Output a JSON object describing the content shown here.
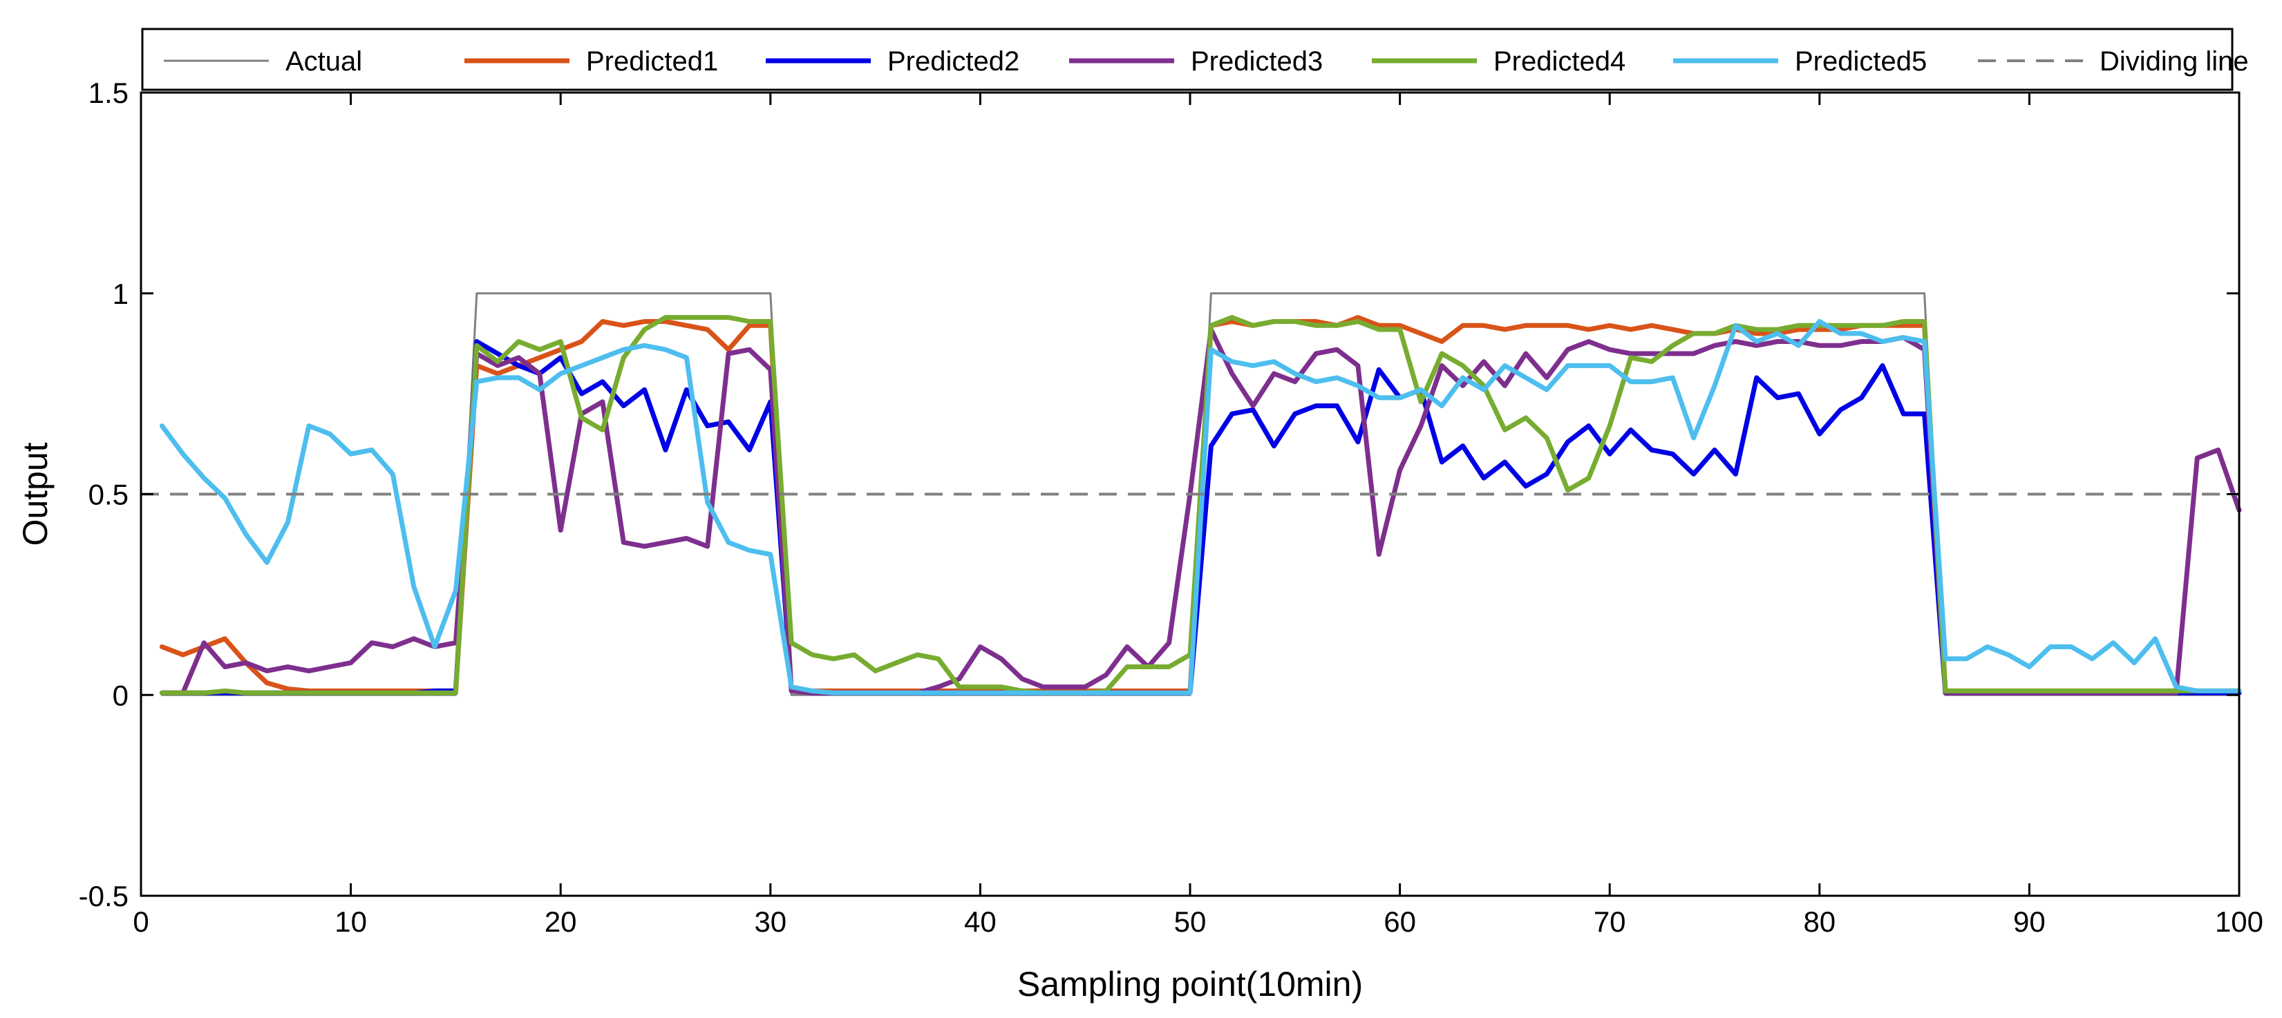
{
  "chart_data": {
    "type": "line",
    "title": "",
    "xlabel": "Sampling point(10min)",
    "ylabel": "Output",
    "xlim": [
      0,
      100
    ],
    "ylim": [
      -0.5,
      1.5
    ],
    "xticks": [
      "0",
      "10",
      "20",
      "30",
      "40",
      "50",
      "60",
      "70",
      "80",
      "90",
      "100"
    ],
    "yticks": [
      "-0.5",
      "0",
      "0.5",
      "1",
      "1.5"
    ],
    "xtick_values": [
      0,
      10,
      20,
      30,
      40,
      50,
      60,
      70,
      80,
      90,
      100
    ],
    "ytick_values": [
      -0.5,
      0,
      0.5,
      1,
      1.5
    ],
    "grid": false,
    "legend_placement": "top",
    "x": [
      1,
      2,
      3,
      4,
      5,
      6,
      7,
      8,
      9,
      10,
      11,
      12,
      13,
      14,
      15,
      16,
      17,
      18,
      19,
      20,
      21,
      22,
      23,
      24,
      25,
      26,
      27,
      28,
      29,
      30,
      31,
      32,
      33,
      34,
      35,
      36,
      37,
      38,
      39,
      40,
      41,
      42,
      43,
      44,
      45,
      46,
      47,
      48,
      49,
      50,
      51,
      52,
      53,
      54,
      55,
      56,
      57,
      58,
      59,
      60,
      61,
      62,
      63,
      64,
      65,
      66,
      67,
      68,
      69,
      70,
      71,
      72,
      73,
      74,
      75,
      76,
      77,
      78,
      79,
      80,
      81,
      82,
      83,
      84,
      85,
      86,
      87,
      88,
      89,
      90,
      91,
      92,
      93,
      94,
      95,
      96,
      97,
      98,
      99,
      100
    ],
    "series": [
      {
        "name": "Actual",
        "color": "#808080",
        "style": "solid",
        "width": "thin",
        "values": [
          0,
          0,
          0,
          0,
          0,
          0,
          0,
          0,
          0,
          0,
          0,
          0,
          0,
          0,
          0,
          1,
          1,
          1,
          1,
          1,
          1,
          1,
          1,
          1,
          1,
          1,
          1,
          1,
          1,
          1,
          0,
          0,
          0,
          0,
          0,
          0,
          0,
          0,
          0,
          0,
          0,
          0,
          0,
          0,
          0,
          0,
          0,
          0,
          0,
          0,
          1,
          1,
          1,
          1,
          1,
          1,
          1,
          1,
          1,
          1,
          1,
          1,
          1,
          1,
          1,
          1,
          1,
          1,
          1,
          1,
          1,
          1,
          1,
          1,
          1,
          1,
          1,
          1,
          1,
          1,
          1,
          1,
          1,
          1,
          1,
          0,
          0,
          0,
          0,
          0,
          0,
          0,
          0,
          0,
          0,
          0,
          0,
          0,
          0,
          0
        ]
      },
      {
        "name": "Predicted1",
        "color": "#D95319",
        "style": "solid",
        "width": "thick",
        "values": [
          0.12,
          0.1,
          0.12,
          0.14,
          0.08,
          0.03,
          0.015,
          0.01,
          0.01,
          0.01,
          0.01,
          0.01,
          0.01,
          0.01,
          0.01,
          0.82,
          0.8,
          0.82,
          0.84,
          0.86,
          0.88,
          0.93,
          0.92,
          0.93,
          0.93,
          0.92,
          0.91,
          0.86,
          0.92,
          0.92,
          0.01,
          0.01,
          0.01,
          0.01,
          0.01,
          0.01,
          0.01,
          0.01,
          0.01,
          0.01,
          0.01,
          0.01,
          0.01,
          0.01,
          0.01,
          0.01,
          0.01,
          0.01,
          0.01,
          0.01,
          0.92,
          0.93,
          0.92,
          0.93,
          0.93,
          0.93,
          0.92,
          0.94,
          0.92,
          0.92,
          0.9,
          0.88,
          0.92,
          0.92,
          0.91,
          0.92,
          0.92,
          0.92,
          0.91,
          0.92,
          0.91,
          0.92,
          0.91,
          0.9,
          0.9,
          0.91,
          0.9,
          0.9,
          0.91,
          0.91,
          0.91,
          0.92,
          0.92,
          0.92,
          0.92,
          0.01,
          0.01,
          0.01,
          0.01,
          0.01,
          0.01,
          0.01,
          0.01,
          0.01,
          0.01,
          0.01,
          0.01,
          0.01,
          0.01,
          0.01
        ]
      },
      {
        "name": "Predicted2",
        "color": "#0000E6",
        "style": "solid",
        "width": "thick",
        "values": [
          0.005,
          0.005,
          0.005,
          0.005,
          0.005,
          0.005,
          0.005,
          0.005,
          0.005,
          0.005,
          0.005,
          0.005,
          0.005,
          0.01,
          0.01,
          0.88,
          0.85,
          0.82,
          0.8,
          0.84,
          0.75,
          0.78,
          0.72,
          0.76,
          0.61,
          0.76,
          0.67,
          0.68,
          0.61,
          0.73,
          0.01,
          0.005,
          0.005,
          0.005,
          0.005,
          0.005,
          0.005,
          0.005,
          0.005,
          0.005,
          0.005,
          0.005,
          0.005,
          0.005,
          0.005,
          0.005,
          0.005,
          0.005,
          0.005,
          0.005,
          0.62,
          0.7,
          0.71,
          0.62,
          0.7,
          0.72,
          0.72,
          0.63,
          0.81,
          0.74,
          0.76,
          0.58,
          0.62,
          0.54,
          0.58,
          0.52,
          0.55,
          0.63,
          0.67,
          0.6,
          0.66,
          0.61,
          0.6,
          0.55,
          0.61,
          0.55,
          0.79,
          0.74,
          0.75,
          0.65,
          0.71,
          0.74,
          0.82,
          0.7,
          0.7,
          0.005,
          0.005,
          0.005,
          0.005,
          0.005,
          0.005,
          0.005,
          0.005,
          0.005,
          0.005,
          0.005,
          0.005,
          0.005,
          0.005,
          0.005
        ]
      },
      {
        "name": "Predicted3",
        "color": "#7E2F8E",
        "style": "solid",
        "width": "thick",
        "values": [
          0.005,
          0.005,
          0.13,
          0.07,
          0.08,
          0.06,
          0.07,
          0.06,
          0.07,
          0.08,
          0.13,
          0.12,
          0.14,
          0.12,
          0.13,
          0.85,
          0.82,
          0.84,
          0.8,
          0.41,
          0.7,
          0.73,
          0.38,
          0.37,
          0.38,
          0.39,
          0.37,
          0.85,
          0.86,
          0.81,
          0.01,
          0.005,
          0.005,
          0.005,
          0.005,
          0.005,
          0.005,
          0.02,
          0.04,
          0.12,
          0.09,
          0.04,
          0.02,
          0.02,
          0.02,
          0.05,
          0.12,
          0.07,
          0.13,
          0.5,
          0.91,
          0.8,
          0.72,
          0.8,
          0.78,
          0.85,
          0.86,
          0.82,
          0.35,
          0.56,
          0.67,
          0.82,
          0.77,
          0.83,
          0.77,
          0.85,
          0.79,
          0.86,
          0.88,
          0.86,
          0.85,
          0.85,
          0.85,
          0.85,
          0.87,
          0.88,
          0.87,
          0.88,
          0.88,
          0.87,
          0.87,
          0.88,
          0.88,
          0.89,
          0.86,
          0.005,
          0.005,
          0.005,
          0.005,
          0.005,
          0.005,
          0.005,
          0.005,
          0.005,
          0.005,
          0.005,
          0.005,
          0.59,
          0.61,
          0.46
        ]
      },
      {
        "name": "Predicted4",
        "color": "#77AC30",
        "style": "solid",
        "width": "thick",
        "values": [
          0.005,
          0.005,
          0.005,
          0.01,
          0.005,
          0.005,
          0.005,
          0.005,
          0.005,
          0.005,
          0.005,
          0.005,
          0.005,
          0.005,
          0.005,
          0.87,
          0.83,
          0.88,
          0.86,
          0.88,
          0.69,
          0.66,
          0.84,
          0.91,
          0.94,
          0.94,
          0.94,
          0.94,
          0.93,
          0.93,
          0.13,
          0.1,
          0.09,
          0.1,
          0.06,
          0.08,
          0.1,
          0.09,
          0.02,
          0.02,
          0.02,
          0.01,
          0.005,
          0.005,
          0.005,
          0.01,
          0.07,
          0.07,
          0.07,
          0.1,
          0.92,
          0.94,
          0.92,
          0.93,
          0.93,
          0.92,
          0.92,
          0.93,
          0.91,
          0.91,
          0.73,
          0.85,
          0.82,
          0.77,
          0.66,
          0.69,
          0.64,
          0.51,
          0.54,
          0.67,
          0.84,
          0.83,
          0.87,
          0.9,
          0.9,
          0.92,
          0.91,
          0.91,
          0.92,
          0.92,
          0.92,
          0.92,
          0.92,
          0.93,
          0.93,
          0.01,
          0.01,
          0.01,
          0.01,
          0.01,
          0.01,
          0.01,
          0.01,
          0.01,
          0.01,
          0.01,
          0.01,
          0.01,
          0.01,
          0.01
        ]
      },
      {
        "name": "Predicted5",
        "color": "#4DBEEE",
        "style": "solid",
        "width": "thick",
        "values": [
          0.67,
          0.6,
          0.54,
          0.49,
          0.4,
          0.33,
          0.43,
          0.67,
          0.65,
          0.6,
          0.61,
          0.55,
          0.27,
          0.12,
          0.26,
          0.78,
          0.79,
          0.79,
          0.76,
          0.8,
          0.82,
          0.84,
          0.86,
          0.87,
          0.86,
          0.84,
          0.48,
          0.38,
          0.36,
          0.35,
          0.02,
          0.01,
          0.005,
          0.005,
          0.005,
          0.005,
          0.005,
          0.005,
          0.005,
          0.005,
          0.005,
          0.005,
          0.005,
          0.005,
          0.005,
          0.005,
          0.005,
          0.005,
          0.005,
          0.005,
          0.86,
          0.83,
          0.82,
          0.83,
          0.8,
          0.78,
          0.79,
          0.77,
          0.74,
          0.74,
          0.76,
          0.72,
          0.79,
          0.76,
          0.82,
          0.79,
          0.76,
          0.82,
          0.82,
          0.82,
          0.78,
          0.78,
          0.79,
          0.64,
          0.77,
          0.92,
          0.88,
          0.9,
          0.87,
          0.93,
          0.9,
          0.9,
          0.88,
          0.89,
          0.88,
          0.09,
          0.09,
          0.12,
          0.1,
          0.07,
          0.12,
          0.12,
          0.09,
          0.13,
          0.08,
          0.14,
          0.02,
          0.01,
          0.01,
          0.01
        ]
      },
      {
        "name": "Dividing line",
        "color": "#808080",
        "style": "dashed",
        "width": "medium",
        "constant": 0.5
      }
    ]
  }
}
